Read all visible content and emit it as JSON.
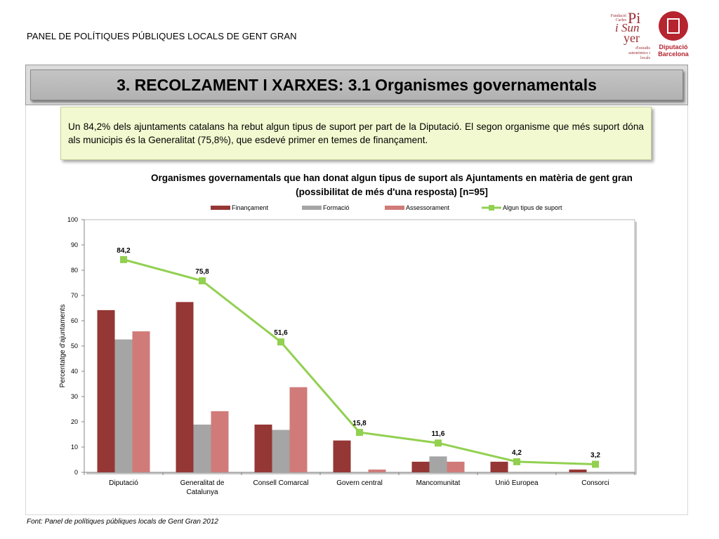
{
  "header": {
    "text": "PANEL DE POLÍTIQUES PÚBLIQUES LOCALS DE GENT GRAN"
  },
  "logos": {
    "pi_small": "Fundació Carles",
    "pi_line1": "Pi",
    "pi_line2": "i Sun",
    "pi_line3": "yer",
    "pi_tag": "d'estudis autonòmics i locals",
    "dipu_text": "Diputació Barcelona"
  },
  "slide": {
    "title": "3. RECOLZAMENT I XARXES: 3.1 Organismes governamentals",
    "summary": "Un 84,2% dels ajuntaments catalans ha rebut algun tipus de suport per part de la Diputació. El segon organisme que més suport dóna als municipis és la Generalitat (75,8%), que esdevé primer en temes de finançament.",
    "source": "Font: Panel de  polítiques públiques locals de Gent Gran 2012"
  },
  "chart_data": {
    "type": "bar",
    "title": "Organismes governamentals que han donat algun tipus de suport als Ajuntaments en matèria de gent gran (possibilitat de més d'una resposta) [n=95]",
    "xlabel": "",
    "ylabel": "Percentatge d'ajuntaments",
    "ylim": [
      0,
      100
    ],
    "yticks": [
      0,
      10,
      20,
      30,
      40,
      50,
      60,
      70,
      80,
      90,
      100
    ],
    "grid": false,
    "legend": "top",
    "categories": [
      "Diputació",
      "Generalitat de Catalunya",
      "Consell Comarcal",
      "Govern central",
      "Mancomunitat",
      "Unió Europea",
      "Consorci"
    ],
    "category_lines": [
      [
        "Diputació"
      ],
      [
        "Generalitat de",
        "Catalunya"
      ],
      [
        "Consell Comarcal"
      ],
      [
        "Govern central"
      ],
      [
        "Mancomunitat"
      ],
      [
        "Unió Europea"
      ],
      [
        "Consorci"
      ]
    ],
    "series": [
      {
        "name": "Finançament",
        "kind": "bar",
        "color": "#953735",
        "values": [
          64.2,
          67.4,
          18.9,
          12.6,
          4.2,
          4.2,
          1.1
        ]
      },
      {
        "name": "Formació",
        "kind": "bar",
        "color": "#a5a5a5",
        "values": [
          52.6,
          18.9,
          16.8,
          0,
          6.3,
          0,
          0
        ]
      },
      {
        "name": "Assessorament",
        "kind": "bar",
        "color": "#d07b79",
        "values": [
          55.8,
          24.2,
          33.7,
          1.1,
          4.2,
          0,
          0
        ]
      },
      {
        "name": "Algun tipus de suport",
        "kind": "line",
        "color": "#92d050",
        "values": [
          84.2,
          75.8,
          51.6,
          15.8,
          11.6,
          4.2,
          3.2
        ],
        "labels": [
          "84,2",
          "75,8",
          "51,6",
          "15,8",
          "11,6",
          "4,2",
          "3,2"
        ]
      }
    ]
  }
}
